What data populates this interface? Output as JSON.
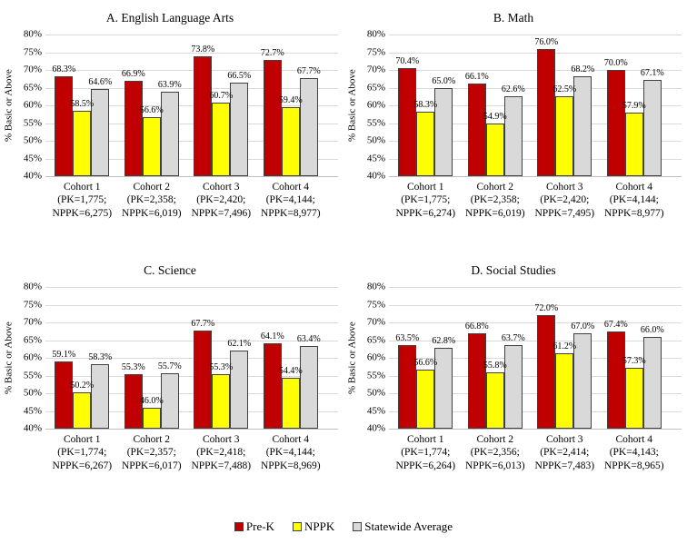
{
  "legend": {
    "items": [
      {
        "label": "Pre-K",
        "color": "#C00000"
      },
      {
        "label": "NPPK",
        "color": "#FFFF00"
      },
      {
        "label": "Statewide Average",
        "color": "#D9D9D9"
      }
    ]
  },
  "chart_data": [
    {
      "type": "bar",
      "title": "A. English Language Arts",
      "ylabel": "% Basic or Above",
      "ylim": [
        40,
        80
      ],
      "ytick_step": 5,
      "ytick_suffix": "%",
      "grid": true,
      "categories": [
        "Cohort 1\n(PK=1,775;\nNPPK=6,275)",
        "Cohort 2\n(PK=2,358;\nNPPK=6,019)",
        "Cohort 3\n(PK=2,420;\nNPPK=7,496)",
        "Cohort 4\n(PK=4,144;\nNPPK=8,977)"
      ],
      "series": [
        {
          "name": "Pre-K",
          "color": "#C00000",
          "values": [
            68.3,
            66.9,
            73.8,
            72.7
          ]
        },
        {
          "name": "NPPK",
          "color": "#FFFF00",
          "values": [
            58.5,
            56.6,
            60.7,
            59.4
          ]
        },
        {
          "name": "Statewide Average",
          "color": "#D9D9D9",
          "values": [
            64.6,
            63.9,
            66.5,
            67.7
          ]
        }
      ]
    },
    {
      "type": "bar",
      "title": "B. Math",
      "ylabel": "% Basic or Above",
      "ylim": [
        40,
        80
      ],
      "ytick_step": 5,
      "ytick_suffix": "%",
      "grid": true,
      "categories": [
        "Cohort 1\n(PK=1,775;\nNPPK=6,274)",
        "Cohort 2\n(PK=2,358;\nNPPK=6,019)",
        "Cohort 3\n(PK=2,420;\nNPPK=7,495)",
        "Cohort 4\n(PK=4,144;\nNPPK=8,977)"
      ],
      "series": [
        {
          "name": "Pre-K",
          "color": "#C00000",
          "values": [
            70.4,
            66.1,
            76.0,
            70.0
          ]
        },
        {
          "name": "NPPK",
          "color": "#FFFF00",
          "values": [
            58.3,
            54.9,
            62.5,
            57.9
          ]
        },
        {
          "name": "Statewide Average",
          "color": "#D9D9D9",
          "values": [
            65.0,
            62.6,
            68.2,
            67.1
          ]
        }
      ]
    },
    {
      "type": "bar",
      "title": "C. Science",
      "ylabel": "% Basic or Above",
      "ylim": [
        40,
        80
      ],
      "ytick_step": 5,
      "ytick_suffix": "%",
      "grid": true,
      "categories": [
        "Cohort 1\n(PK=1,774;\nNPPK=6,267)",
        "Cohort 2\n(PK=2,357;\nNPPK=6,017)",
        "Cohort 3\n(PK=2,418;\nNPPK=7,488)",
        "Cohort 4\n(PK=4,144;\nNPPK=8,969)"
      ],
      "series": [
        {
          "name": "Pre-K",
          "color": "#C00000",
          "values": [
            59.1,
            55.3,
            67.7,
            64.1
          ]
        },
        {
          "name": "NPPK",
          "color": "#FFFF00",
          "values": [
            50.2,
            46.0,
            55.3,
            54.4
          ]
        },
        {
          "name": "Statewide Average",
          "color": "#D9D9D9",
          "values": [
            58.3,
            55.7,
            62.1,
            63.4
          ]
        }
      ]
    },
    {
      "type": "bar",
      "title": "D. Social Studies",
      "ylabel": "% Basic or Above",
      "ylim": [
        40,
        80
      ],
      "ytick_step": 5,
      "ytick_suffix": "%",
      "grid": true,
      "categories": [
        "Cohort 1\n(PK=1,774;\nNPPK=6,264)",
        "Cohort 2\n(PK=2,356;\nNPPK=6,013)",
        "Cohort 3\n(PK=2,414;\nNPPK=7,483)",
        "Cohort 4\n(PK=4,143;\nNPPK=8,965)"
      ],
      "series": [
        {
          "name": "Pre-K",
          "color": "#C00000",
          "values": [
            63.5,
            66.8,
            72.0,
            67.4
          ]
        },
        {
          "name": "NPPK",
          "color": "#FFFF00",
          "values": [
            56.6,
            55.8,
            61.2,
            57.3
          ]
        },
        {
          "name": "Statewide Average",
          "color": "#D9D9D9",
          "values": [
            62.8,
            63.7,
            67.0,
            66.0
          ]
        }
      ]
    }
  ]
}
